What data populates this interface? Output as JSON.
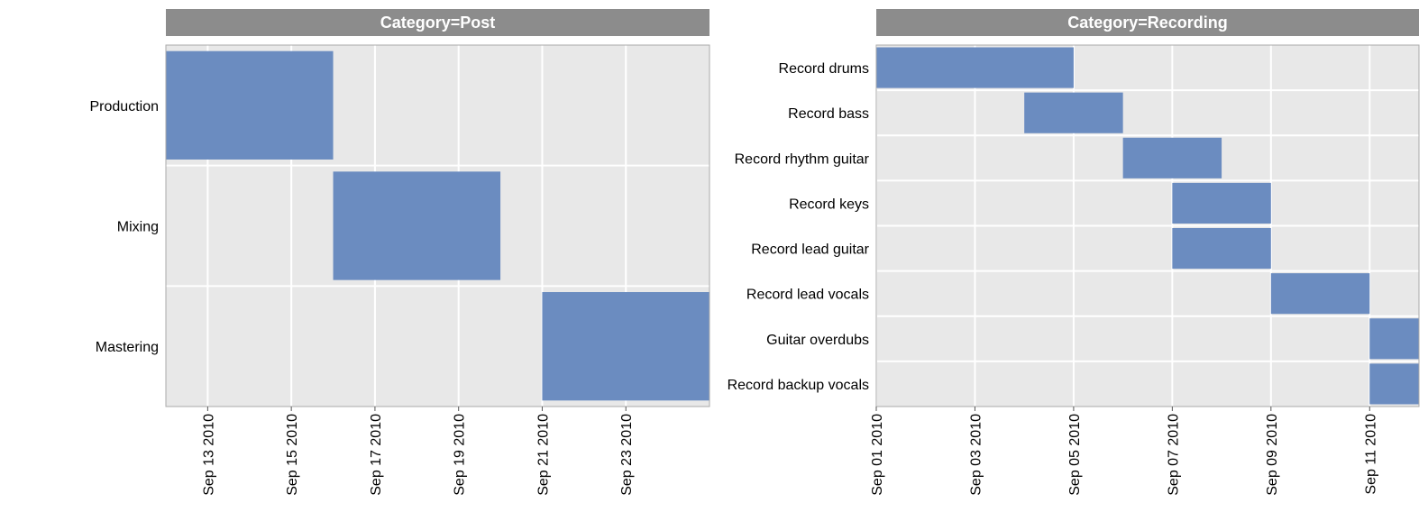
{
  "chart_data": [
    {
      "type": "bar",
      "subtype": "gantt",
      "facet_title": "Category=Post",
      "categories": [
        "Production",
        "Mixing",
        "Mastering"
      ],
      "tasks": [
        {
          "task": "Production",
          "start": "2010-09-12",
          "end": "2010-09-16"
        },
        {
          "task": "Mixing",
          "start": "2010-09-16",
          "end": "2010-09-20"
        },
        {
          "task": "Mastering",
          "start": "2010-09-21",
          "end": "2010-09-25"
        }
      ],
      "xlim": [
        "2010-09-12",
        "2010-09-25"
      ],
      "x_ticks": [
        {
          "date": "2010-09-13",
          "label": "Sep 13 2010"
        },
        {
          "date": "2010-09-15",
          "label": "Sep 15 2010"
        },
        {
          "date": "2010-09-17",
          "label": "Sep 17 2010"
        },
        {
          "date": "2010-09-19",
          "label": "Sep 19 2010"
        },
        {
          "date": "2010-09-21",
          "label": "Sep 21 2010"
        },
        {
          "date": "2010-09-23",
          "label": "Sep 23 2010"
        }
      ],
      "xlabel": "",
      "ylabel": "",
      "grid": true
    },
    {
      "type": "bar",
      "subtype": "gantt",
      "facet_title": "Category=Recording",
      "categories": [
        "Record drums",
        "Record bass",
        "Record rhythm guitar",
        "Record keys",
        "Record lead guitar",
        "Record lead vocals",
        "Guitar overdubs",
        "Record backup vocals"
      ],
      "tasks": [
        {
          "task": "Record drums",
          "start": "2010-09-01",
          "end": "2010-09-05"
        },
        {
          "task": "Record bass",
          "start": "2010-09-04",
          "end": "2010-09-06"
        },
        {
          "task": "Record rhythm guitar",
          "start": "2010-09-06",
          "end": "2010-09-08"
        },
        {
          "task": "Record keys",
          "start": "2010-09-07",
          "end": "2010-09-09"
        },
        {
          "task": "Record lead guitar",
          "start": "2010-09-07",
          "end": "2010-09-09"
        },
        {
          "task": "Record lead vocals",
          "start": "2010-09-09",
          "end": "2010-09-11"
        },
        {
          "task": "Guitar overdubs",
          "start": "2010-09-11",
          "end": "2010-09-12"
        },
        {
          "task": "Record backup vocals",
          "start": "2010-09-11",
          "end": "2010-09-12"
        }
      ],
      "xlim": [
        "2010-09-01",
        "2010-09-12"
      ],
      "x_ticks": [
        {
          "date": "2010-09-01",
          "label": "Sep 01 2010"
        },
        {
          "date": "2010-09-03",
          "label": "Sep 03 2010"
        },
        {
          "date": "2010-09-05",
          "label": "Sep 05 2010"
        },
        {
          "date": "2010-09-07",
          "label": "Sep 07 2010"
        },
        {
          "date": "2010-09-09",
          "label": "Sep 09 2010"
        },
        {
          "date": "2010-09-11",
          "label": "Sep 11 2010"
        }
      ],
      "xlabel": "",
      "ylabel": "",
      "grid": true
    }
  ],
  "colors": {
    "bar": "#6b8cc0",
    "panel_background": "#e8e8e8",
    "strip_background": "#8c8c8c",
    "strip_text": "#ffffff",
    "grid": "#ffffff",
    "panel_border": "#aaaaaa"
  }
}
